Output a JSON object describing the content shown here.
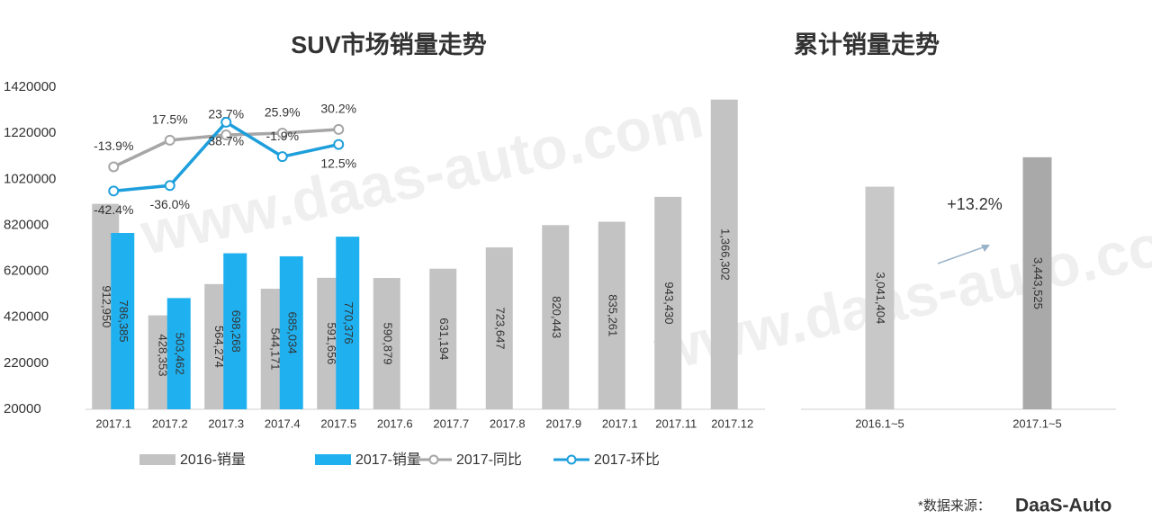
{
  "chart_data": [
    {
      "type": "bar",
      "title": "SUV市场销量走势",
      "categories": [
        "2017.1",
        "2017.2",
        "2017.3",
        "2017.4",
        "2017.5",
        "2017.6",
        "2017.7",
        "2017.8",
        "2017.9",
        "2017.1",
        "2017.11",
        "2017.12"
      ],
      "series": [
        {
          "name": "2016-销量",
          "color": "#c3c3c3",
          "values": [
            912950,
            428353,
            564274,
            544171,
            591656,
            590879,
            631194,
            723647,
            820443,
            835261,
            943430,
            1366302
          ],
          "value_labels": [
            "912,950",
            "428,353",
            "564,274",
            "544,171",
            "591,656",
            "590,879",
            "631,194",
            "723,647",
            "820,443",
            "835,261",
            "943,430",
            "1,366,302"
          ]
        },
        {
          "name": "2017-销量",
          "color": "#1fb1ef",
          "values": [
            786385,
            503462,
            698268,
            685034,
            770376,
            null,
            null,
            null,
            null,
            null,
            null,
            null
          ],
          "value_labels": [
            "786,385",
            "503,462",
            "698,268",
            "685,034",
            "770,376",
            null,
            null,
            null,
            null,
            null,
            null,
            null
          ]
        },
        {
          "name": "2017-同比",
          "type": "line",
          "axis": "y2",
          "color": "#a6a6a6",
          "values": [
            -13.9,
            17.5,
            23.7,
            25.9,
            30.2,
            null,
            null,
            null,
            null,
            null,
            null,
            null
          ],
          "value_labels": [
            "-13.9%",
            "17.5%",
            "23.7%",
            "25.9%",
            "30.2%",
            null,
            null,
            null,
            null,
            null,
            null,
            null
          ]
        },
        {
          "name": "2017-环比",
          "type": "line",
          "axis": "y2",
          "color": "#1e9fdc",
          "values": [
            -42.4,
            -36.0,
            38.7,
            -1.9,
            12.5,
            null,
            null,
            null,
            null,
            null,
            null,
            null
          ],
          "value_labels": [
            "-42.4%",
            "-36.0%",
            "38.7%",
            "-1.9%",
            "12.5%",
            null,
            null,
            null,
            null,
            null,
            null,
            null
          ]
        }
      ],
      "ylim": [
        20000,
        1420000
      ],
      "yticks": [
        20000,
        220000,
        420000,
        620000,
        820000,
        1020000,
        1220000,
        1420000
      ],
      "y2lim": [
        -300,
        80
      ],
      "grid": false,
      "legend": "bottom"
    },
    {
      "type": "bar",
      "title": "累计销量走势",
      "categories": [
        "2016.1~5",
        "2017.1~5"
      ],
      "values": [
        3041404,
        3443525
      ],
      "value_labels": [
        "3,041,404",
        "3,443,525"
      ],
      "colors": [
        "#c8c8c8",
        "#a9a9a9"
      ],
      "ylim": [
        0,
        4400000
      ],
      "annotation": "+13.2%"
    }
  ],
  "watermark": "www.daas-auto.com",
  "source": "*数据来源：",
  "logo": "DaaS-Auto"
}
